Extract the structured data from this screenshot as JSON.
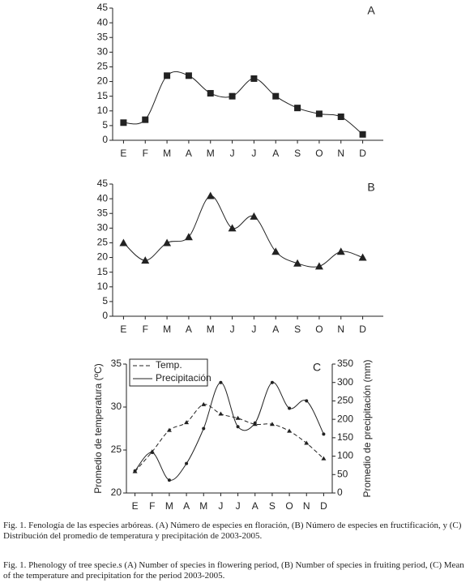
{
  "chart_data": [
    {
      "type": "line",
      "label": "A",
      "categories": [
        "E",
        "F",
        "M",
        "A",
        "M",
        "J",
        "J",
        "A",
        "S",
        "O",
        "N",
        "D"
      ],
      "series": [
        {
          "color": "#222222",
          "marker": "square",
          "values": [
            6,
            7,
            22,
            22,
            16,
            15,
            21,
            15,
            11,
            9,
            8,
            2
          ]
        }
      ],
      "ylim": [
        0,
        45
      ],
      "yticks": [
        0,
        5,
        10,
        15,
        20,
        25,
        30,
        35,
        40,
        45
      ],
      "grid": false
    },
    {
      "type": "line",
      "label": "B",
      "categories": [
        "E",
        "F",
        "M",
        "A",
        "M",
        "J",
        "J",
        "A",
        "S",
        "O",
        "N",
        "D"
      ],
      "series": [
        {
          "color": "#222222",
          "marker": "triangle",
          "values": [
            25,
            19,
            25,
            27,
            41,
            30,
            34,
            22,
            18,
            17,
            22,
            20
          ]
        }
      ],
      "ylim": [
        0,
        45
      ],
      "yticks": [
        0,
        5,
        10,
        15,
        20,
        25,
        30,
        35,
        40,
        45
      ],
      "grid": false
    },
    {
      "type": "line",
      "label": "C",
      "categories": [
        "E",
        "F",
        "M",
        "A",
        "M",
        "J",
        "J",
        "A",
        "S",
        "O",
        "N",
        "D"
      ],
      "series": [
        {
          "name": "Temp.",
          "color": "#222222",
          "marker": "star",
          "dashed": true,
          "values": [
            22.5,
            24.8,
            27.3,
            28.2,
            30.3,
            29.2,
            28.7,
            28.0,
            28.0,
            27.2,
            25.8,
            24.0
          ]
        },
        {
          "name": "Precipitación",
          "color": "#222222",
          "marker": "dot",
          "dashed": false,
          "axis": "y2",
          "values": [
            60,
            110,
            35,
            80,
            175,
            300,
            180,
            190,
            300,
            230,
            250,
            160
          ]
        }
      ],
      "ylabel": "Promedio de temperatura (ºC)",
      "y2label": "Promedio de precipitación (mm)",
      "ylim": [
        20,
        35
      ],
      "yticks": [
        20,
        25,
        30,
        35
      ],
      "y2lim": [
        0,
        350
      ],
      "y2ticks": [
        0,
        50,
        100,
        150,
        200,
        250,
        300,
        350
      ],
      "legend": "upper left",
      "grid": false
    }
  ],
  "captions": [
    "Fig. 1. Fenología de las especies arbóreas. (A) Número de especies en floración, (B) Número de especies en fructificación, y (C) Distribución del promedio de temperatura y precipitación de 2003-2005.",
    "Fig. 1. Phenology of tree specie.s (A) Number of species in flowering period, (B) Number of species in fruiting period, (C) Mean of the temperature and precipitation for the period 2003-2005."
  ]
}
